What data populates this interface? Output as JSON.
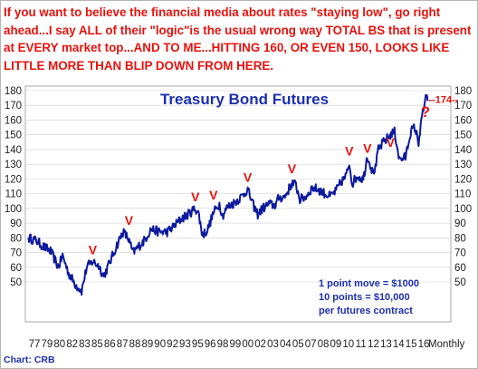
{
  "headline": "If you want to believe the financial media about rates \"staying low\", go right ahead...I say ALL of their \"logic\"is the usual wrong way TOTAL BS that is present at EVERY market top...AND TO ME...HITTING 160, OR EVEN 150, LOOKS LIKE LITTLE MORE THAN BLIP DOWN FROM HERE.",
  "footer": "Chart: CRB",
  "colors": {
    "headline": "#e8120c",
    "line": "#0d1a9e",
    "title": "#1c2fb0",
    "marker": "#e8120c",
    "grid": "#cfcfcf",
    "plot_border": "#a8a8a8"
  },
  "chart_data": {
    "type": "line",
    "title": "Treasury Bond Futures",
    "x_tick_labels": [
      "77",
      "79",
      "80",
      "82",
      "83",
      "85",
      "86",
      "87",
      "88",
      "89",
      "90",
      "92",
      "93",
      "95",
      "96",
      "98",
      "99",
      "00",
      "02",
      "03",
      "04",
      "05",
      "07",
      "08",
      "09",
      "10",
      "11",
      "12",
      "13",
      "14",
      "15",
      "16"
    ],
    "x_axis_suffix": "Monthly",
    "ylim": [
      40,
      180
    ],
    "y_ticks": [
      50,
      60,
      70,
      80,
      90,
      100,
      110,
      120,
      130,
      140,
      150,
      160,
      170,
      180
    ],
    "y_tick_labels": [
      "50",
      "60",
      "70",
      "80",
      "90",
      "100",
      "110",
      "120",
      "130",
      "140",
      "150",
      "160",
      "170",
      "180"
    ],
    "grid": true,
    "series": [
      {
        "name": "",
        "x": [
          1977.0,
          1977.8,
          1978.5,
          1979.2,
          1980.0,
          1980.4,
          1981.0,
          1981.7,
          1982.3,
          1982.8,
          1983.4,
          1984.0,
          1984.5,
          1985.2,
          1985.8,
          1986.4,
          1986.9,
          1987.4,
          1987.8,
          1988.5,
          1989.2,
          1990.0,
          1990.8,
          1991.5,
          1992.2,
          1992.9,
          1993.6,
          1993.9,
          1994.3,
          1994.8,
          1995.4,
          1996.0,
          1996.3,
          1996.8,
          1997.5,
          1998.2,
          1998.8,
          1999.3,
          1999.8,
          2000.3,
          2000.9,
          2001.5,
          2001.9,
          2002.5,
          2003.2,
          2003.6,
          2004.0,
          2004.6,
          2005.2,
          2005.8,
          2006.5,
          2007.0,
          2007.6,
          2008.1,
          2008.6,
          2008.9,
          2009.2,
          2009.7,
          2010.3,
          2010.7,
          2011.2,
          2011.5,
          2011.8,
          2012.3,
          2012.6,
          2013.0,
          2013.4,
          2013.9,
          2014.5,
          2015.0,
          2015.4,
          2015.8,
          2016.2,
          2016.5,
          2016.7
        ],
        "y": [
          80,
          78,
          74,
          71,
          60,
          68,
          56,
          48,
          44,
          60,
          64,
          61,
          54,
          65,
          75,
          84,
          80,
          70,
          73,
          78,
          86,
          84,
          84,
          88,
          93,
          96,
          100,
          97,
          82,
          85,
          97,
          103,
          95,
          101,
          104,
          108,
          113,
          103,
          96,
          100,
          103,
          102,
          107,
          108,
          117,
          116,
          106,
          108,
          114,
          113,
          110,
          108,
          112,
          118,
          122,
          131,
          117,
          122,
          120,
          136,
          125,
          127,
          140,
          145,
          147,
          150,
          152,
          133,
          135,
          152,
          155,
          145,
          165,
          175,
          173
        ]
      }
    ],
    "annotations": [
      {
        "text": "Treasury Bond Futures",
        "kind": "title"
      },
      {
        "text": "V",
        "x": 1983.4,
        "y": 64,
        "kind": "marker"
      },
      {
        "text": "V",
        "x": 1987.0,
        "y": 84,
        "kind": "marker"
      },
      {
        "text": "V",
        "x": 1993.6,
        "y": 100,
        "kind": "marker"
      },
      {
        "text": "V",
        "x": 1995.4,
        "y": 101,
        "kind": "marker"
      },
      {
        "text": "V",
        "x": 1998.8,
        "y": 113,
        "kind": "marker"
      },
      {
        "text": "V",
        "x": 2003.2,
        "y": 119,
        "kind": "marker"
      },
      {
        "text": "V",
        "x": 2008.9,
        "y": 131,
        "kind": "marker"
      },
      {
        "text": "V",
        "x": 2010.7,
        "y": 133,
        "kind": "marker"
      },
      {
        "text": "V",
        "x": 2013.0,
        "y": 137,
        "kind": "marker"
      },
      {
        "text": "--174--",
        "x": 2016.7,
        "y": 174,
        "kind": "level"
      },
      {
        "text": "?",
        "x": 2016.9,
        "y": 158,
        "kind": "question"
      },
      {
        "text": "1 point move = $1000",
        "kind": "note"
      },
      {
        "text": "10 points = $10,000",
        "kind": "note"
      },
      {
        "text": "per futures contract",
        "kind": "note"
      }
    ]
  }
}
